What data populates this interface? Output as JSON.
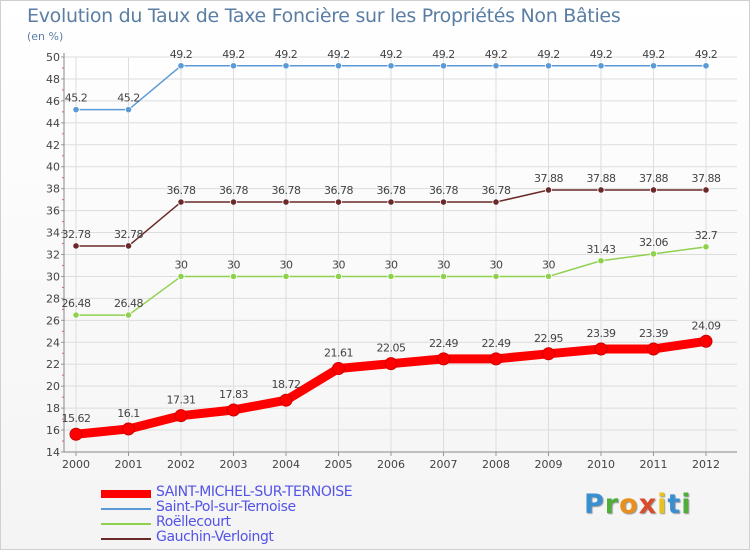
{
  "page": {
    "title": "Evolution du Taux de Taxe Foncière sur les Propriétés Non Bâties",
    "subtitle": "(en %)",
    "brand": "Proxiti"
  },
  "chart_data": {
    "type": "line",
    "title": "Evolution du Taux de Taxe Foncière sur les Propriétés Non Bâties",
    "ylabel": "(en %)",
    "xlabel": "",
    "categories": [
      "2000",
      "2001",
      "2002",
      "2003",
      "2004",
      "2005",
      "2006",
      "2007",
      "2008",
      "2009",
      "2010",
      "2011",
      "2012"
    ],
    "ylim": [
      14,
      50
    ],
    "yticks": [
      14,
      16,
      18,
      20,
      22,
      24,
      26,
      28,
      30,
      32,
      34,
      36,
      38,
      40,
      42,
      44,
      46,
      48,
      50
    ],
    "grid": true,
    "legend_position": "bottom-left",
    "series": [
      {
        "name": "SAINT-MICHEL-SUR-TERNOISE",
        "color": "#ff0000",
        "width": "thick",
        "values": [
          15.62,
          16.1,
          17.31,
          17.83,
          18.72,
          21.61,
          22.05,
          22.49,
          22.49,
          22.95,
          23.39,
          23.39,
          24.09
        ],
        "labels": [
          "15.62",
          "16.1",
          "17.31",
          "17.83",
          "18.72",
          "21.61",
          "22.05",
          "22.49",
          "22.49",
          "22.95",
          "23.39",
          "23.39",
          "24.09"
        ]
      },
      {
        "name": "Saint-Pol-sur-Ternoise",
        "color": "#5b9bd5",
        "width": "thin",
        "values": [
          45.2,
          45.2,
          49.2,
          49.2,
          49.2,
          49.2,
          49.2,
          49.2,
          49.2,
          49.2,
          49.2,
          49.2,
          49.2
        ],
        "labels": [
          "45.2",
          "45.2",
          "49.2",
          "49.2",
          "49.2",
          "49.2",
          "49.2",
          "49.2",
          "49.2",
          "49.2",
          "49.2",
          "49.2",
          "49.2"
        ]
      },
      {
        "name": "Roëllecourt",
        "color": "#8fd14f",
        "width": "thin",
        "values": [
          26.48,
          26.48,
          30,
          30,
          30,
          30,
          30,
          30,
          30,
          30,
          31.43,
          32.06,
          32.7
        ],
        "labels": [
          "26.48",
          "26.48",
          "30",
          "30",
          "30",
          "30",
          "30",
          "30",
          "30",
          "30",
          "31.43",
          "32.06",
          "32.7"
        ]
      },
      {
        "name": "Gauchin-Verloingt",
        "color": "#6b2a2a",
        "width": "thin",
        "values": [
          32.78,
          32.78,
          36.78,
          36.78,
          36.78,
          36.78,
          36.78,
          36.78,
          36.78,
          37.88,
          37.88,
          37.88,
          37.88
        ],
        "labels": [
          "32.78",
          "32.78",
          "36.78",
          "36.78",
          "36.78",
          "36.78",
          "36.78",
          "36.78",
          "36.78",
          "37.88",
          "37.88",
          "37.88",
          "37.88"
        ]
      }
    ]
  }
}
